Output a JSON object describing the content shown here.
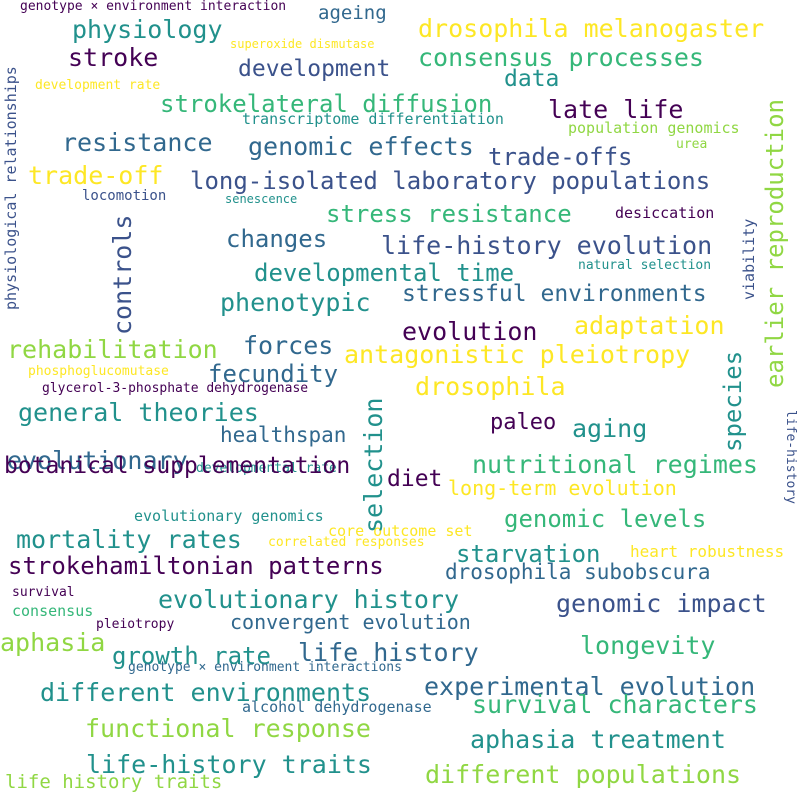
{
  "palette": {
    "dark_purple": "#440154",
    "indigo": "#3b528b",
    "blue": "#31688e",
    "teal": "#21918c",
    "green": "#35b779",
    "lime": "#90d743",
    "yellow": "#fde725",
    "background": "#ffffff"
  },
  "words": [
    "genotype × environment interaction",
    "ageing",
    "drosophila melanogaster",
    "physiology",
    "superoxide dismutase",
    "stroke",
    "consensus processes",
    "development",
    "data",
    "development rate",
    "strokelateral diffusion",
    "late life",
    "transcriptome differentiation",
    "population genomics",
    "resistance",
    "genomic effects",
    "urea",
    "trade-offs",
    "trade-off",
    "long-isolated laboratory populations",
    "locomotion",
    "senescence",
    "stress resistance",
    "desiccation",
    "changes",
    "life-history evolution",
    "natural selection",
    "developmental time",
    "phenotypic",
    "stressful environments",
    "evolution",
    "adaptation",
    "rehabilitation",
    "forces",
    "antagonistic pleiotropy",
    "phosphoglucomutase",
    "fecundity",
    "glycerol-3-phosphate dehydrogenase",
    "drosophila",
    "general theories",
    "paleo",
    "aging",
    "healthspan",
    "evolutionary",
    "developmental rate",
    "nutritional regimes",
    "diet",
    "botanical supplementation",
    "long-term evolution",
    "evolutionary genomics",
    "genomic levels",
    "core outcome set",
    "mortality rates",
    "correlated responses",
    "starvation",
    "heart robustness",
    "strokehamiltonian patterns",
    "drosophila subobscura",
    "survival",
    "evolutionary history",
    "genomic impact",
    "consensus",
    "pleiotropy",
    "convergent evolution",
    "aphasia",
    "longevity",
    "growth rate",
    "life history",
    "genotype × environment interactions",
    "experimental evolution",
    "different environments",
    "survival characters",
    "alcohol dehydrogenase",
    "functional response",
    "aphasia treatment",
    "life-history traits",
    "different populations",
    "life history traits",
    "physiological relationships",
    "controls",
    "selection",
    "species",
    "earlier reproduction",
    "viability",
    "life-history"
  ]
}
